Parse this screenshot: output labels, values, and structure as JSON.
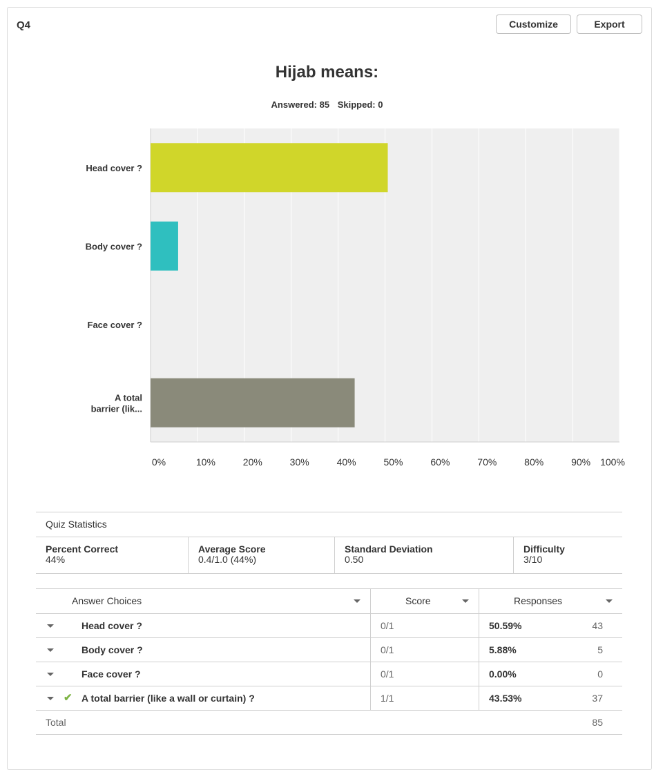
{
  "question": {
    "number": "Q4",
    "title": "Hijab means:",
    "answered_label": "Answered: 85",
    "skipped_label": "Skipped: 0"
  },
  "toolbar": {
    "customize_label": "Customize",
    "export_label": "Export"
  },
  "chart_data": {
    "type": "bar",
    "orientation": "horizontal",
    "title": "Hijab means:",
    "categories": [
      "Head cover ?",
      "Body cover ?",
      "Face cover ?",
      "A total barrier (lik..."
    ],
    "category_lines": [
      [
        "Head cover ?"
      ],
      [
        "Body cover ?"
      ],
      [
        "Face cover ?"
      ],
      [
        "A total",
        "barrier (lik..."
      ]
    ],
    "values": [
      50.59,
      5.88,
      0.0,
      43.53
    ],
    "colors": [
      "#d0d62a",
      "#2fbfbf",
      "#f0a040",
      "#8a8a7a"
    ],
    "xlim": [
      0,
      100
    ],
    "x_ticks": [
      "0%",
      "10%",
      "20%",
      "30%",
      "40%",
      "50%",
      "60%",
      "70%",
      "80%",
      "90%",
      "100%"
    ],
    "grid": true,
    "xlabel": "",
    "ylabel": ""
  },
  "quiz_stats": {
    "header": "Quiz Statistics",
    "items": [
      {
        "label": "Percent Correct",
        "value": "44%"
      },
      {
        "label": "Average Score",
        "value": "0.4/1.0 (44%)"
      },
      {
        "label": "Standard Deviation",
        "value": "0.50"
      },
      {
        "label": "Difficulty",
        "value": "3/10"
      }
    ]
  },
  "answers_table": {
    "headers": {
      "choices": "Answer Choices",
      "score": "Score",
      "responses": "Responses"
    },
    "rows": [
      {
        "label": "Head cover ?",
        "score": "0/1",
        "percent": "50.59%",
        "count": "43",
        "correct": false
      },
      {
        "label": "Body cover ?",
        "score": "0/1",
        "percent": "5.88%",
        "count": "5",
        "correct": false
      },
      {
        "label": "Face cover ?",
        "score": "0/1",
        "percent": "0.00%",
        "count": "0",
        "correct": false
      },
      {
        "label": "A total barrier (like a wall or curtain) ?",
        "score": "1/1",
        "percent": "43.53%",
        "count": "37",
        "correct": true
      }
    ],
    "total_label": "Total",
    "total_count": "85",
    "check_glyph": "✔"
  }
}
